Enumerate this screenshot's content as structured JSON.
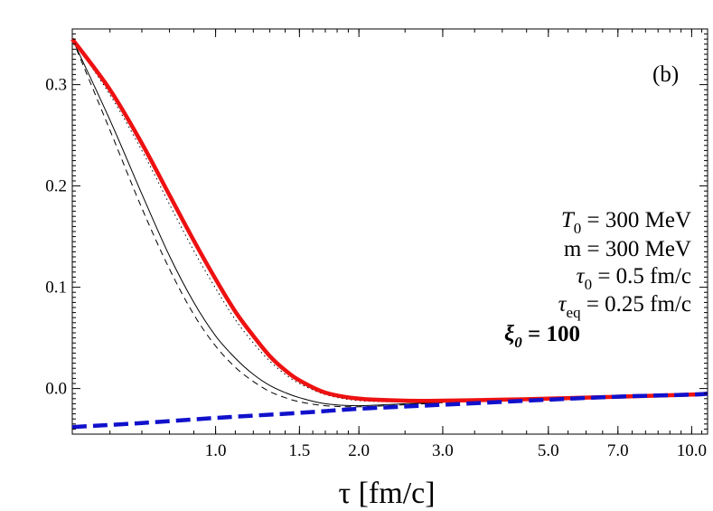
{
  "chart_data": {
    "type": "line",
    "title": "",
    "panel_label": "(b)",
    "xlabel": "τ [fm/c]",
    "ylabel": "",
    "x_scale": "log",
    "xlim": [
      0.5,
      10.8
    ],
    "ylim": [
      -0.045,
      0.355
    ],
    "x_ticks": [
      {
        "value": 1.0,
        "label": "1.0"
      },
      {
        "value": 1.5,
        "label": "1.5"
      },
      {
        "value": 2.0,
        "label": "2.0"
      },
      {
        "value": 3.0,
        "label": "3.0"
      },
      {
        "value": 5.0,
        "label": "5.0"
      },
      {
        "value": 7.0,
        "label": "7.0"
      },
      {
        "value": 10.0,
        "label": "10.0"
      }
    ],
    "y_ticks": [
      {
        "value": 0.0,
        "label": "0.0"
      },
      {
        "value": 0.1,
        "label": "0.1"
      },
      {
        "value": 0.2,
        "label": "0.2"
      },
      {
        "value": 0.3,
        "label": "0.3"
      }
    ],
    "grid": false,
    "annotations": {
      "t0": "= 300 MeV",
      "m": "m = 300 MeV",
      "tau0": "= 0.5 fm/c",
      "taueq": "= 0.25 fm/c",
      "xi0": "= 100"
    },
    "series": [
      {
        "style": "solid-thick",
        "color": "#ee1111",
        "x": [
          0.5,
          0.6,
          0.7,
          0.8,
          0.9,
          1.0,
          1.1,
          1.2,
          1.3,
          1.4,
          1.5,
          1.7,
          2.0,
          2.5,
          3.0,
          4.0,
          5.0,
          7.0,
          10.0,
          10.8
        ],
        "y": [
          0.345,
          0.295,
          0.242,
          0.191,
          0.146,
          0.108,
          0.076,
          0.052,
          0.032,
          0.018,
          0.008,
          -0.004,
          -0.01,
          -0.012,
          -0.012,
          -0.011,
          -0.01,
          -0.008,
          -0.006,
          -0.005
        ]
      },
      {
        "style": "dashed-thick",
        "color": "#1111cc",
        "x": [
          0.5,
          0.7,
          1.0,
          1.5,
          2.0,
          3.0,
          5.0,
          7.0,
          10.0,
          10.8
        ],
        "y": [
          -0.038,
          -0.034,
          -0.029,
          -0.024,
          -0.02,
          -0.016,
          -0.011,
          -0.008,
          -0.006,
          -0.005
        ]
      },
      {
        "style": "solid-thin",
        "color": "#000000",
        "x": [
          0.5,
          0.6,
          0.7,
          0.8,
          0.9,
          1.0,
          1.1,
          1.2,
          1.3,
          1.4,
          1.5,
          1.7,
          2.0,
          2.5,
          3.0
        ],
        "y": [
          0.345,
          0.265,
          0.192,
          0.131,
          0.085,
          0.052,
          0.03,
          0.014,
          0.003,
          -0.004,
          -0.009,
          -0.015,
          -0.017,
          -0.015,
          -0.014
        ]
      },
      {
        "style": "dashed-thin",
        "color": "#000000",
        "x": [
          0.5,
          0.6,
          0.7,
          0.8,
          0.9,
          1.0,
          1.1,
          1.2,
          1.3,
          1.4,
          1.5,
          1.7,
          2.0,
          2.5,
          3.0
        ],
        "y": [
          0.345,
          0.255,
          0.178,
          0.118,
          0.073,
          0.042,
          0.021,
          0.007,
          -0.003,
          -0.009,
          -0.013,
          -0.017,
          -0.018,
          -0.016,
          -0.014
        ]
      },
      {
        "style": "dotted-thin",
        "color": "#000000",
        "x": [
          0.5,
          0.6,
          0.7,
          0.8,
          0.9,
          1.0,
          1.1,
          1.2,
          1.3,
          1.4,
          1.5,
          1.7,
          2.0,
          2.5,
          3.0
        ],
        "y": [
          0.345,
          0.29,
          0.235,
          0.182,
          0.136,
          0.099,
          0.068,
          0.045,
          0.027,
          0.014,
          0.005,
          -0.006,
          -0.012,
          -0.013,
          -0.013
        ]
      }
    ]
  }
}
